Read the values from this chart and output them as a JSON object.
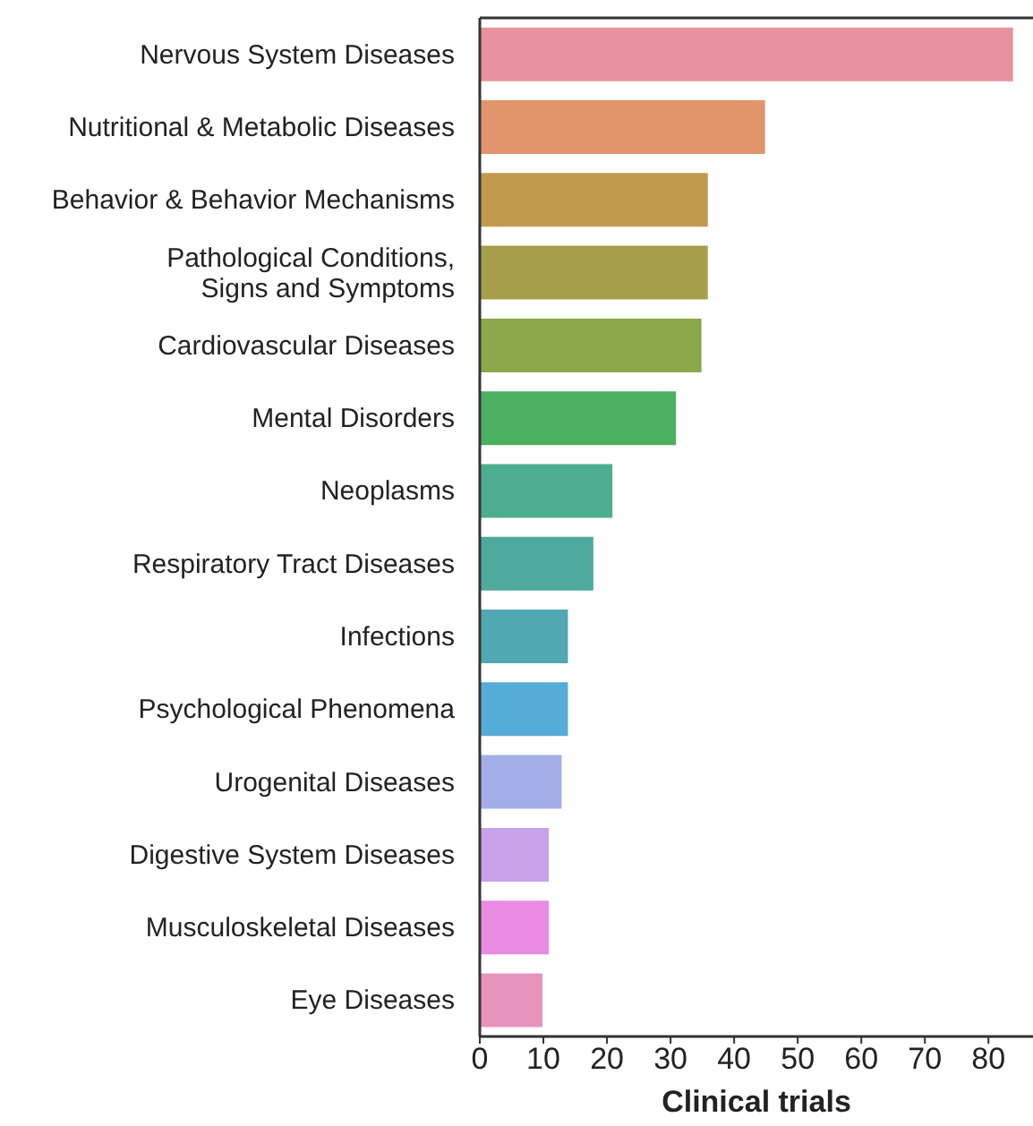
{
  "chart_data": {
    "type": "bar",
    "orientation": "horizontal",
    "xlabel": "Clinical trials",
    "categories": [
      "Nervous System Diseases",
      "Nutritional & Metabolic Diseases",
      "Behavior & Behavior Mechanisms",
      "Pathological Conditions,\nSigns and Symptoms",
      "Cardiovascular Diseases",
      "Mental Disorders",
      "Neoplasms",
      "Respiratory Tract Diseases",
      "Infections",
      "Psychological Phenomena",
      "Urogenital Diseases",
      "Digestive System Diseases",
      "Musculoskeletal Diseases",
      "Eye Diseases"
    ],
    "values": [
      84,
      45,
      36,
      36,
      35,
      31,
      21,
      18,
      14,
      14,
      13,
      11,
      11,
      10
    ],
    "colors": [
      "#e8929f",
      "#e2956a",
      "#c29a4d",
      "#a69e49",
      "#8ba84a",
      "#4bb061",
      "#4dae8f",
      "#4eaa9d",
      "#50a9b1",
      "#55acd7",
      "#a3aee9",
      "#c7a1ea",
      "#e98be0",
      "#e794bd"
    ],
    "xlim": [
      0,
      87
    ],
    "xticks": [
      0,
      10,
      20,
      30,
      40,
      50,
      60,
      70,
      80
    ]
  }
}
